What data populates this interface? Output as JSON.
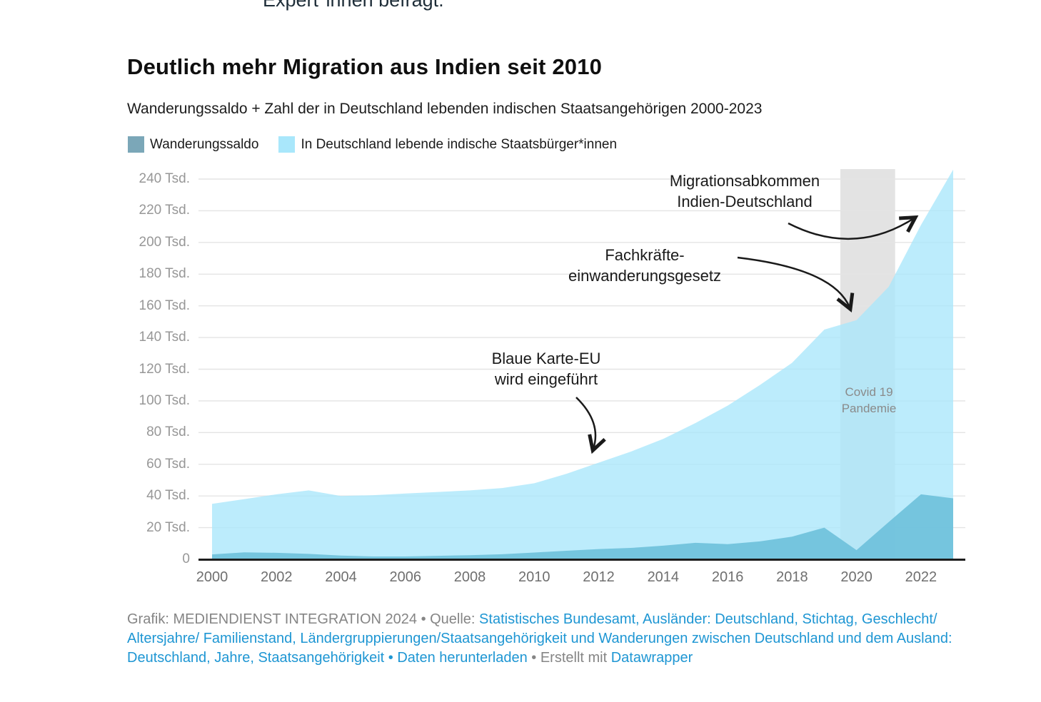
{
  "page": {
    "top_cut_text": "Expert*innen befragt.",
    "title": "Deutlich mehr Migration aus Indien seit 2010",
    "subtitle": "Wanderungssaldo + Zahl der in Deutschland lebenden indischen Staatsangehörigen 2000-2023"
  },
  "legend": [
    {
      "label": "Wanderungssaldo",
      "color": "#7ba7b8"
    },
    {
      "label": "In Deutschland lebende indische Staatsbürger*innen",
      "color": "#a9e7fb"
    }
  ],
  "chart_data": {
    "type": "area",
    "title": "Deutlich mehr Migration aus Indien seit 2010",
    "x": [
      2000,
      2001,
      2002,
      2003,
      2004,
      2005,
      2006,
      2007,
      2008,
      2009,
      2010,
      2011,
      2012,
      2013,
      2014,
      2015,
      2016,
      2017,
      2018,
      2019,
      2020,
      2021,
      2022,
      2023
    ],
    "series": [
      {
        "name": "Wanderungssaldo",
        "color": "#6fc1db",
        "values": [
          3.1,
          4.4,
          4.1,
          3.4,
          2.4,
          1.8,
          1.8,
          2.2,
          2.6,
          3.2,
          4.3,
          5.4,
          6.5,
          7.2,
          8.6,
          10.4,
          9.6,
          11.3,
          14.3,
          20,
          5.8,
          23.5,
          41,
          38.5
        ]
      },
      {
        "name": "In Deutschland lebende indische Staatsbürger*innen",
        "color": "#a9e7fb",
        "values": [
          35,
          38,
          41,
          43.5,
          40,
          40.5,
          41.5,
          42.5,
          43.5,
          45,
          48,
          54,
          61,
          68,
          76,
          86,
          97,
          110,
          124,
          145,
          151,
          172,
          211,
          246
        ]
      }
    ],
    "unit": "Tsd.",
    "ylim": [
      0,
      240
    ],
    "ytick_step": 20,
    "ytick_suffix": " Tsd.",
    "xticks": [
      2000,
      2002,
      2004,
      2006,
      2008,
      2010,
      2012,
      2014,
      2016,
      2018,
      2020,
      2022
    ],
    "grid": true,
    "legend_position": "top",
    "annotations": [
      {
        "id": "blaue-karte",
        "text": "Blaue Karte-EU\nwird eingeführt",
        "arrow_points_to": {
          "x": 2012,
          "y": 66
        }
      },
      {
        "id": "fachkraefte",
        "text": "Fachkräfte-\neinwanderungsgesetz",
        "arrow_points_to": {
          "x": 2019.8,
          "y": 155
        }
      },
      {
        "id": "migrationsabkommen",
        "text": "Migrationsabkommen\nIndien-Deutschland",
        "arrow_points_to": {
          "x": 2022.2,
          "y": 217
        }
      }
    ],
    "covid_band": {
      "label": "Covid 19\nPandemie",
      "x_from": 2019.5,
      "x_to": 2021.2,
      "color": "#e3e3e3"
    }
  },
  "footer": {
    "segments": [
      {
        "text": "Grafik: MEDIENDIENST INTEGRATION 2024 • Quelle: ",
        "style": "muted",
        "link": false
      },
      {
        "text": "Statistisches Bundesamt, Ausländer: Deutschland, Stichtag, Geschlecht/ Altersjahre/ Familienstand, Ländergruppierungen/Staatsangehörigkeit und Wanderungen zwischen Deutschland und dem Ausland: Deutschland, Jahre, Staatsangehörigkeit",
        "style": "link",
        "link": true
      },
      {
        "text": " • ",
        "style": "link",
        "link": false
      },
      {
        "text": "Daten herunterladen",
        "style": "link",
        "link": true
      },
      {
        "text": " • Erstellt mit ",
        "style": "muted",
        "link": false
      },
      {
        "text": "Datawrapper",
        "style": "link",
        "link": true
      }
    ]
  }
}
